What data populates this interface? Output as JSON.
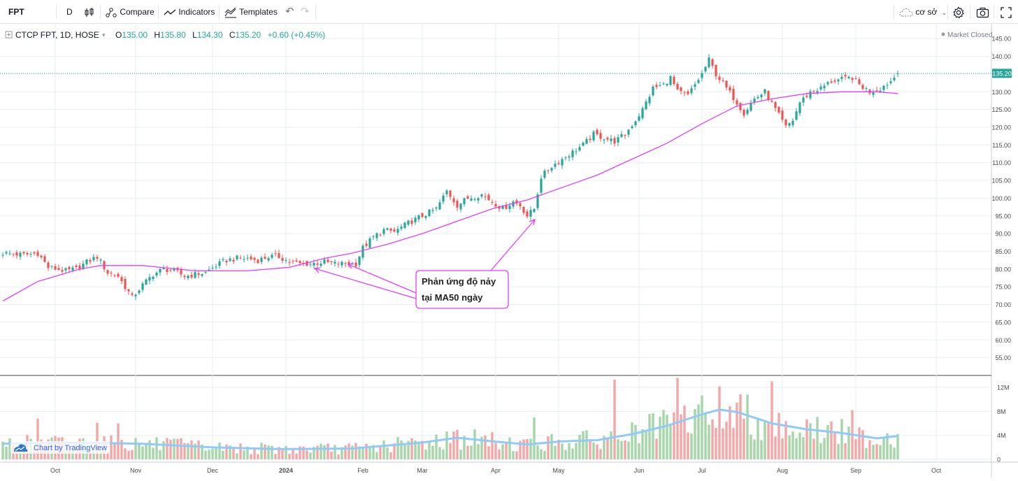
{
  "toolbar": {
    "symbol": "FPT",
    "interval": "D",
    "compare_label": "Compare",
    "indicators_label": "Indicators",
    "templates_label": "Templates",
    "layout_label": "cơ sở",
    "icons": [
      "candles-icon",
      "compare-icon",
      "indicators-icon",
      "templates-icon",
      "undo-icon",
      "redo-icon",
      "cloud-icon",
      "gear-icon",
      "camera-icon",
      "fullscreen-icon"
    ]
  },
  "legend": {
    "title": "CTCP FPT, 1D, HOSE",
    "o_label": "O",
    "o_value": "135.00",
    "h_label": "H",
    "h_value": "135.80",
    "l_label": "L",
    "l_value": "134.30",
    "c_label": "C",
    "c_value": "135.20",
    "change": "+0.60 (+0.45%)",
    "market_status": "Market Closed",
    "watermark": "Chart by TradingView"
  },
  "colors": {
    "up": "#26a69a",
    "down": "#ef5350",
    "ma": "#e040fb",
    "vol_ma": "#90caf9",
    "vol_up": "#a5d6a7",
    "vol_down": "#f4a6a6",
    "grid": "#e6eef2",
    "annotation": "#e040fb"
  },
  "annotation": {
    "line1": "Phản ứng độ nảy",
    "line2": "tại MA50 ngày"
  },
  "chart_data": {
    "type": "candlestick",
    "symbol": "FPT",
    "current_price": "135.20",
    "price_axis": {
      "range": [
        50,
        148
      ],
      "ticks": [
        "55.00",
        "60.00",
        "65.00",
        "70.00",
        "75.00",
        "80.00",
        "85.00",
        "90.00",
        "95.00",
        "100.00",
        "105.00",
        "110.00",
        "115.00",
        "120.00",
        "125.00",
        "130.00",
        "135.00",
        "140.00",
        "145.00"
      ]
    },
    "volume_axis": {
      "range": [
        0,
        14
      ],
      "ticks": [
        "0",
        "4M",
        "8M",
        "12M"
      ]
    },
    "time_axis": {
      "labels": [
        "Oct",
        "Nov",
        "Dec",
        "2024",
        "Feb",
        "Mar",
        "Apr",
        "May",
        "Jun",
        "Jul",
        "Aug",
        "Sep",
        "Oct"
      ],
      "label_day_index": [
        15,
        38,
        60,
        81,
        103,
        120,
        141,
        159,
        182,
        200,
        223,
        244,
        267
      ]
    },
    "close_path": [
      [
        0,
        84.5
      ],
      [
        6,
        84
      ],
      [
        10,
        84.5
      ],
      [
        13,
        80.5
      ],
      [
        18,
        79.5
      ],
      [
        21,
        80
      ],
      [
        24,
        82
      ],
      [
        27,
        83.5
      ],
      [
        30,
        79
      ],
      [
        33,
        78
      ],
      [
        35,
        75
      ],
      [
        37,
        72
      ],
      [
        40,
        75.5
      ],
      [
        43,
        78.5
      ],
      [
        46,
        80
      ],
      [
        49,
        79.5
      ],
      [
        52,
        78
      ],
      [
        55,
        78.5
      ],
      [
        58,
        79
      ],
      [
        61,
        81
      ],
      [
        64,
        82.5
      ],
      [
        67,
        83
      ],
      [
        70,
        83
      ],
      [
        73,
        82.5
      ],
      [
        76,
        83.5
      ],
      [
        79,
        83.5
      ],
      [
        82,
        82
      ],
      [
        85,
        81.5
      ],
      [
        88,
        81.5
      ],
      [
        92,
        82
      ],
      [
        95,
        81.5
      ],
      [
        99,
        81.5
      ],
      [
        101,
        81.5
      ],
      [
        103,
        86
      ],
      [
        106,
        89
      ],
      [
        109,
        91
      ],
      [
        112,
        90.5
      ],
      [
        116,
        93
      ],
      [
        120,
        95
      ],
      [
        124,
        97
      ],
      [
        127,
        102
      ],
      [
        130,
        98
      ],
      [
        133,
        100
      ],
      [
        137,
        101
      ],
      [
        140,
        99
      ],
      [
        143,
        97
      ],
      [
        146,
        99
      ],
      [
        148,
        98
      ],
      [
        150,
        95
      ],
      [
        152,
        97
      ],
      [
        154,
        106
      ],
      [
        157,
        109
      ],
      [
        160,
        111
      ],
      [
        163,
        113
      ],
      [
        166,
        115
      ],
      [
        169,
        118
      ],
      [
        172,
        117
      ],
      [
        175,
        116
      ],
      [
        178,
        118
      ],
      [
        181,
        122
      ],
      [
        183,
        125
      ],
      [
        186,
        131
      ],
      [
        189,
        132
      ],
      [
        191,
        134
      ],
      [
        193,
        130
      ],
      [
        196,
        129
      ],
      [
        198,
        132
      ],
      [
        200,
        135
      ],
      [
        202,
        139
      ],
      [
        204,
        135
      ],
      [
        207,
        131
      ],
      [
        210,
        127
      ],
      [
        212,
        124
      ],
      [
        215,
        128
      ],
      [
        218,
        130
      ],
      [
        221,
        125
      ],
      [
        224,
        120
      ],
      [
        226,
        122
      ],
      [
        228,
        127
      ],
      [
        231,
        130
      ],
      [
        234,
        131
      ],
      [
        237,
        133
      ],
      [
        240,
        133.5
      ],
      [
        243,
        134
      ],
      [
        245,
        132
      ],
      [
        248,
        130
      ],
      [
        251,
        131
      ],
      [
        254,
        133
      ],
      [
        256,
        135.2
      ]
    ],
    "ma50_path": [
      [
        0,
        71
      ],
      [
        10,
        76.5
      ],
      [
        22,
        80
      ],
      [
        28,
        81
      ],
      [
        40,
        81
      ],
      [
        55,
        79.5
      ],
      [
        70,
        79.5
      ],
      [
        82,
        80.5
      ],
      [
        92,
        83
      ],
      [
        100,
        84.5
      ],
      [
        110,
        87
      ],
      [
        120,
        90
      ],
      [
        130,
        93.5
      ],
      [
        140,
        97
      ],
      [
        150,
        99.5
      ],
      [
        160,
        103
      ],
      [
        170,
        106.5
      ],
      [
        180,
        111
      ],
      [
        190,
        115.5
      ],
      [
        200,
        121
      ],
      [
        210,
        126
      ],
      [
        220,
        128
      ],
      [
        230,
        129.5
      ],
      [
        240,
        130
      ],
      [
        250,
        130
      ],
      [
        256,
        129.5
      ]
    ],
    "volume_ma_path": [
      [
        0,
        2.6
      ],
      [
        20,
        2.8
      ],
      [
        40,
        2.6
      ],
      [
        60,
        2.0
      ],
      [
        80,
        1.7
      ],
      [
        100,
        1.8
      ],
      [
        120,
        2.8
      ],
      [
        130,
        3.6
      ],
      [
        140,
        3.0
      ],
      [
        150,
        2.5
      ],
      [
        160,
        3.0
      ],
      [
        170,
        3.2
      ],
      [
        180,
        4.2
      ],
      [
        190,
        5.6
      ],
      [
        200,
        7.5
      ],
      [
        205,
        8.3
      ],
      [
        210,
        7.9
      ],
      [
        220,
        6.0
      ],
      [
        230,
        5.0
      ],
      [
        240,
        4.4
      ],
      [
        250,
        3.5
      ],
      [
        256,
        3.9
      ]
    ],
    "volume_spikes": [
      [
        10,
        6.8
      ],
      [
        27,
        6.1
      ],
      [
        33,
        6.0
      ],
      [
        152,
        7.0
      ],
      [
        175,
        13.3
      ],
      [
        193,
        13.6
      ],
      [
        220,
        13.0
      ],
      [
        243,
        8.2
      ]
    ]
  }
}
